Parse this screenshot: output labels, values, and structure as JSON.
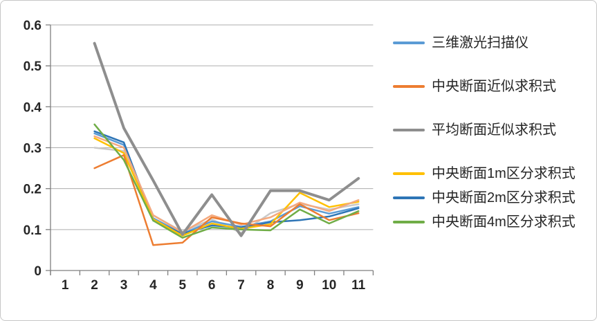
{
  "chart_data": {
    "type": "line",
    "title": "",
    "xlabel": "",
    "ylabel": "",
    "x_tick_labels": [
      "1",
      "2",
      "3",
      "4",
      "5",
      "6",
      "7",
      "8",
      "9",
      "10",
      "11"
    ],
    "y_tick_labels": [
      "0",
      "0.1",
      "0.2",
      "0.3",
      "0.4",
      "0.5",
      "0.6"
    ],
    "y_tick_values": [
      0,
      0.1,
      0.2,
      0.3,
      0.4,
      0.5,
      0.6
    ],
    "ylim": [
      0,
      0.6
    ],
    "grid": "horizontal",
    "legend_position": "right",
    "series": [
      {
        "name": "三维激光扫描仪",
        "color": "#5B9BD5",
        "width": 2.5,
        "in_legend": true,
        "values": [
          null,
          0.335,
          0.307,
          0.128,
          0.09,
          0.12,
          0.107,
          0.12,
          0.157,
          0.139,
          0.155
        ]
      },
      {
        "name": "中央断面近似求积式",
        "color": "#ED7D31",
        "width": 2.5,
        "in_legend": true,
        "values": [
          null,
          0.25,
          0.282,
          0.062,
          0.068,
          0.13,
          0.115,
          0.108,
          0.162,
          0.123,
          0.14
        ]
      },
      {
        "name": "平均断面近似求积式",
        "color": "#8E8E8E",
        "width": 4,
        "in_legend": true,
        "values": [
          null,
          0.555,
          0.348,
          0.22,
          0.088,
          0.185,
          0.085,
          0.195,
          0.195,
          0.172,
          0.225
        ]
      },
      {
        "name": "中央断面1m区分求积式",
        "color": "#FFC000",
        "width": 2.5,
        "in_legend": true,
        "values": [
          null,
          0.323,
          0.287,
          0.125,
          0.085,
          0.115,
          0.102,
          0.113,
          0.19,
          0.155,
          0.168
        ]
      },
      {
        "name": "中央断面2m区分求积式",
        "color": "#2E75B6",
        "width": 2.5,
        "in_legend": true,
        "values": [
          null,
          0.34,
          0.313,
          0.122,
          0.09,
          0.11,
          0.105,
          0.118,
          0.123,
          0.132,
          0.152
        ]
      },
      {
        "name": "中央断面4m区分求积式",
        "color": "#70AD47",
        "width": 2.5,
        "in_legend": true,
        "values": [
          null,
          0.357,
          0.27,
          0.122,
          0.08,
          0.105,
          0.1,
          0.098,
          0.149,
          0.115,
          0.145
        ]
      },
      {
        "name": "",
        "color": "#F4A97E",
        "width": 2.5,
        "in_legend": false,
        "values": [
          null,
          0.328,
          0.3,
          0.135,
          0.093,
          0.135,
          0.112,
          0.13,
          0.166,
          0.145,
          0.172
        ]
      },
      {
        "name": "",
        "color": "#C9C9C9",
        "width": 2.5,
        "in_legend": false,
        "values": [
          null,
          0.3,
          0.292,
          0.135,
          0.095,
          0.125,
          0.092,
          0.14,
          0.163,
          0.149,
          0.162
        ]
      }
    ]
  },
  "colors": {
    "axis": "#7F7F7F",
    "grid": "#ADADAD",
    "tick_label": "#262626",
    "legend_text": "#262626",
    "panel_border": "#C6C6C6"
  }
}
